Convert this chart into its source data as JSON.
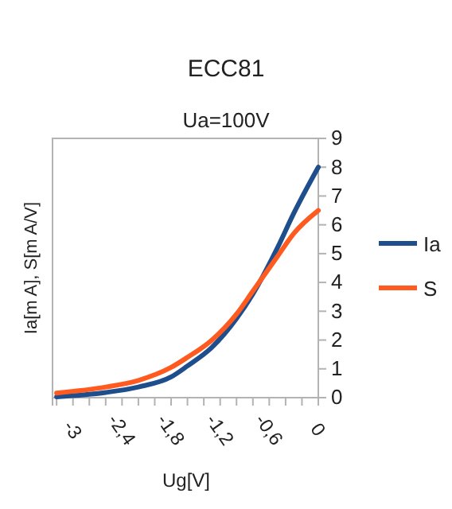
{
  "chart_data": {
    "type": "line",
    "title": "ECC81",
    "subtitle": "Ua=100V",
    "xlabel": "Ug[V]",
    "ylabel": "Ia[m A], S[m A/V]",
    "x": [
      -3.2,
      -2.6,
      -2.2,
      -1.8,
      -1.6,
      -1.3,
      -1.0,
      -0.8,
      -0.5,
      -0.3,
      0
    ],
    "series": [
      {
        "name": "Ia",
        "color": "#1f4e8c",
        "values": [
          0.03,
          0.18,
          0.37,
          0.72,
          1.1,
          1.75,
          2.75,
          3.6,
          5.2,
          6.4,
          8
        ]
      },
      {
        "name": "S",
        "color": "#ff5a1f",
        "values": [
          0.16,
          0.37,
          0.6,
          1.05,
          1.4,
          2.0,
          2.9,
          3.7,
          4.9,
          5.7,
          6.5
        ]
      }
    ],
    "xlim": [
      -3.25,
      0
    ],
    "xticks": [
      {
        "value": -3.2,
        "label": null
      },
      {
        "value": -3,
        "label": "-3"
      },
      {
        "value": -2.8,
        "label": null
      },
      {
        "value": -2.6,
        "label": null
      },
      {
        "value": -2.4,
        "label": "-2,4"
      },
      {
        "value": -2.2,
        "label": null
      },
      {
        "value": -2,
        "label": null
      },
      {
        "value": -1.8,
        "label": "-1,8"
      },
      {
        "value": -1.6,
        "label": null
      },
      {
        "value": -1.4,
        "label": null
      },
      {
        "value": -1.2,
        "label": "-1,2"
      },
      {
        "value": -1,
        "label": null
      },
      {
        "value": -0.8,
        "label": null
      },
      {
        "value": -0.6,
        "label": "-0,6"
      },
      {
        "value": -0.4,
        "label": null
      },
      {
        "value": -0.2,
        "label": null
      },
      {
        "value": 0,
        "label": "0"
      }
    ],
    "ylim": [
      0,
      9
    ],
    "yticks": [
      0,
      1,
      2,
      3,
      4,
      5,
      6,
      7,
      8,
      9
    ],
    "grid": false,
    "legend": "right",
    "marker": "none",
    "line_style": "solid"
  }
}
